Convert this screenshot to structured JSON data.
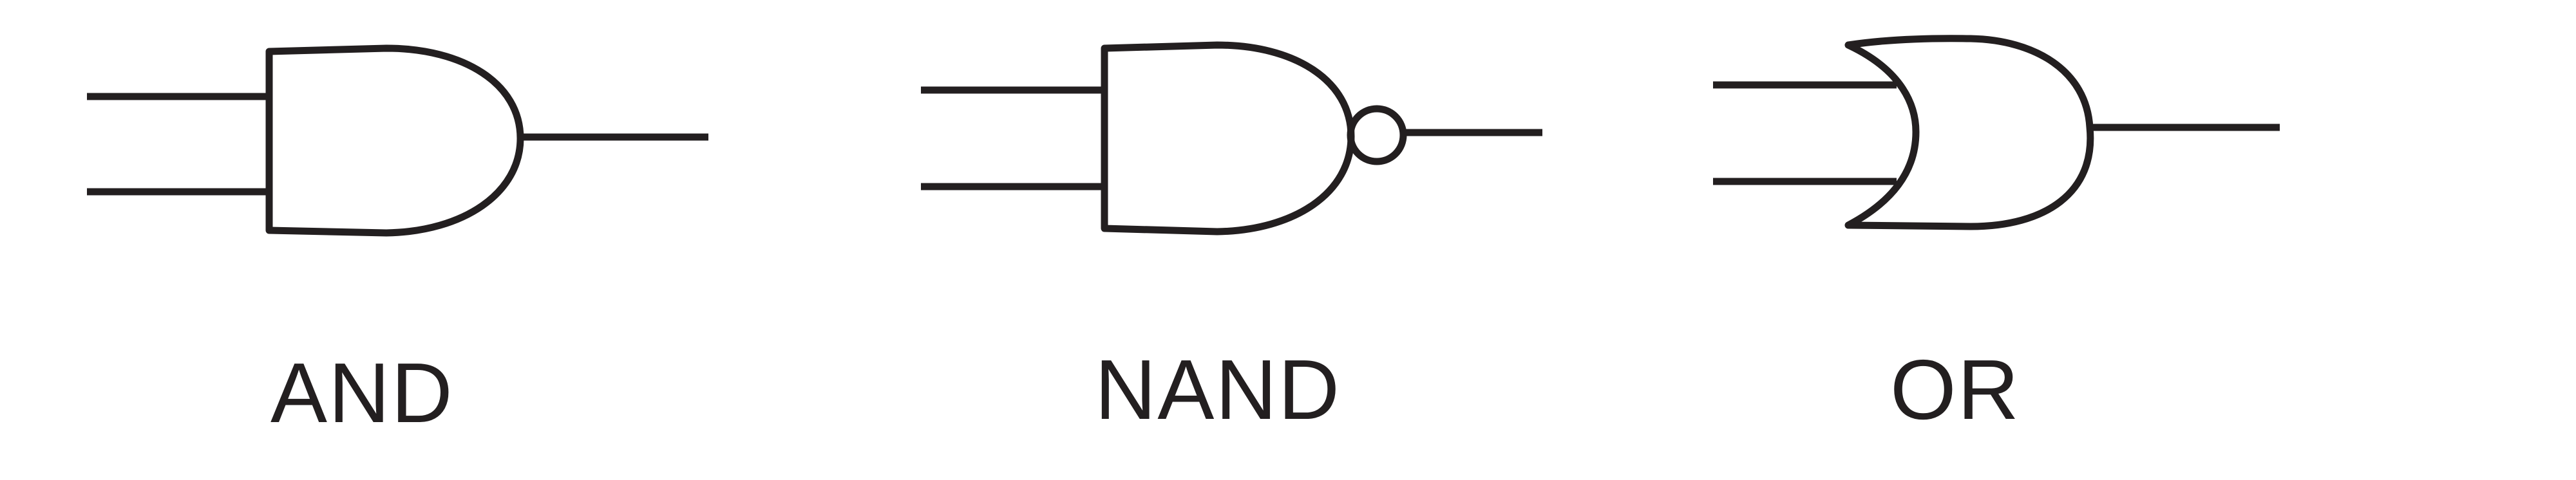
{
  "gates": [
    {
      "id": "and",
      "label": "AND",
      "type": "and"
    },
    {
      "id": "nand",
      "label": "NAND",
      "type": "nand"
    },
    {
      "id": "or",
      "label": "OR",
      "type": "or"
    }
  ],
  "colors": {
    "stroke": "#231f20",
    "background": "#ffffff"
  }
}
